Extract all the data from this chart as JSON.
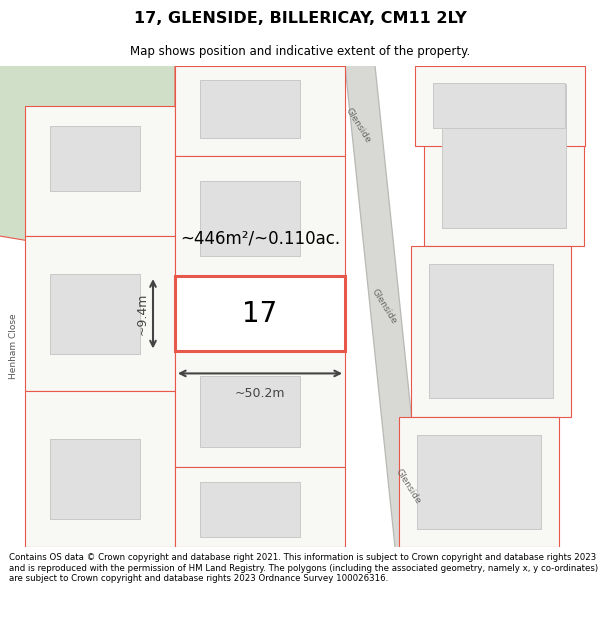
{
  "title": "17, GLENSIDE, BILLERICAY, CM11 2LY",
  "subtitle": "Map shows position and indicative extent of the property.",
  "footer": "Contains OS data © Crown copyright and database right 2021. This information is subject to Crown copyright and database rights 2023 and is reproduced with the permission of HM Land Registry. The polygons (including the associated geometry, namely x, y co-ordinates) are subject to Crown copyright and database rights 2023 Ordnance Survey 100026316.",
  "area_label": "~446m²/~0.110ac.",
  "width_label": "~50.2m",
  "height_label": "~9.4m",
  "property_number": "17",
  "map_bg": "#f0f0eb",
  "plot_outline_color": "#e8584a",
  "building_fill": "#e0e0e0",
  "building_outline": "#c8c8c8",
  "green_area_color": "#d0dfc8",
  "road_band_color": "#d8d8d4",
  "road_line_color": "#b8b8b4",
  "dim_color": "#444444"
}
